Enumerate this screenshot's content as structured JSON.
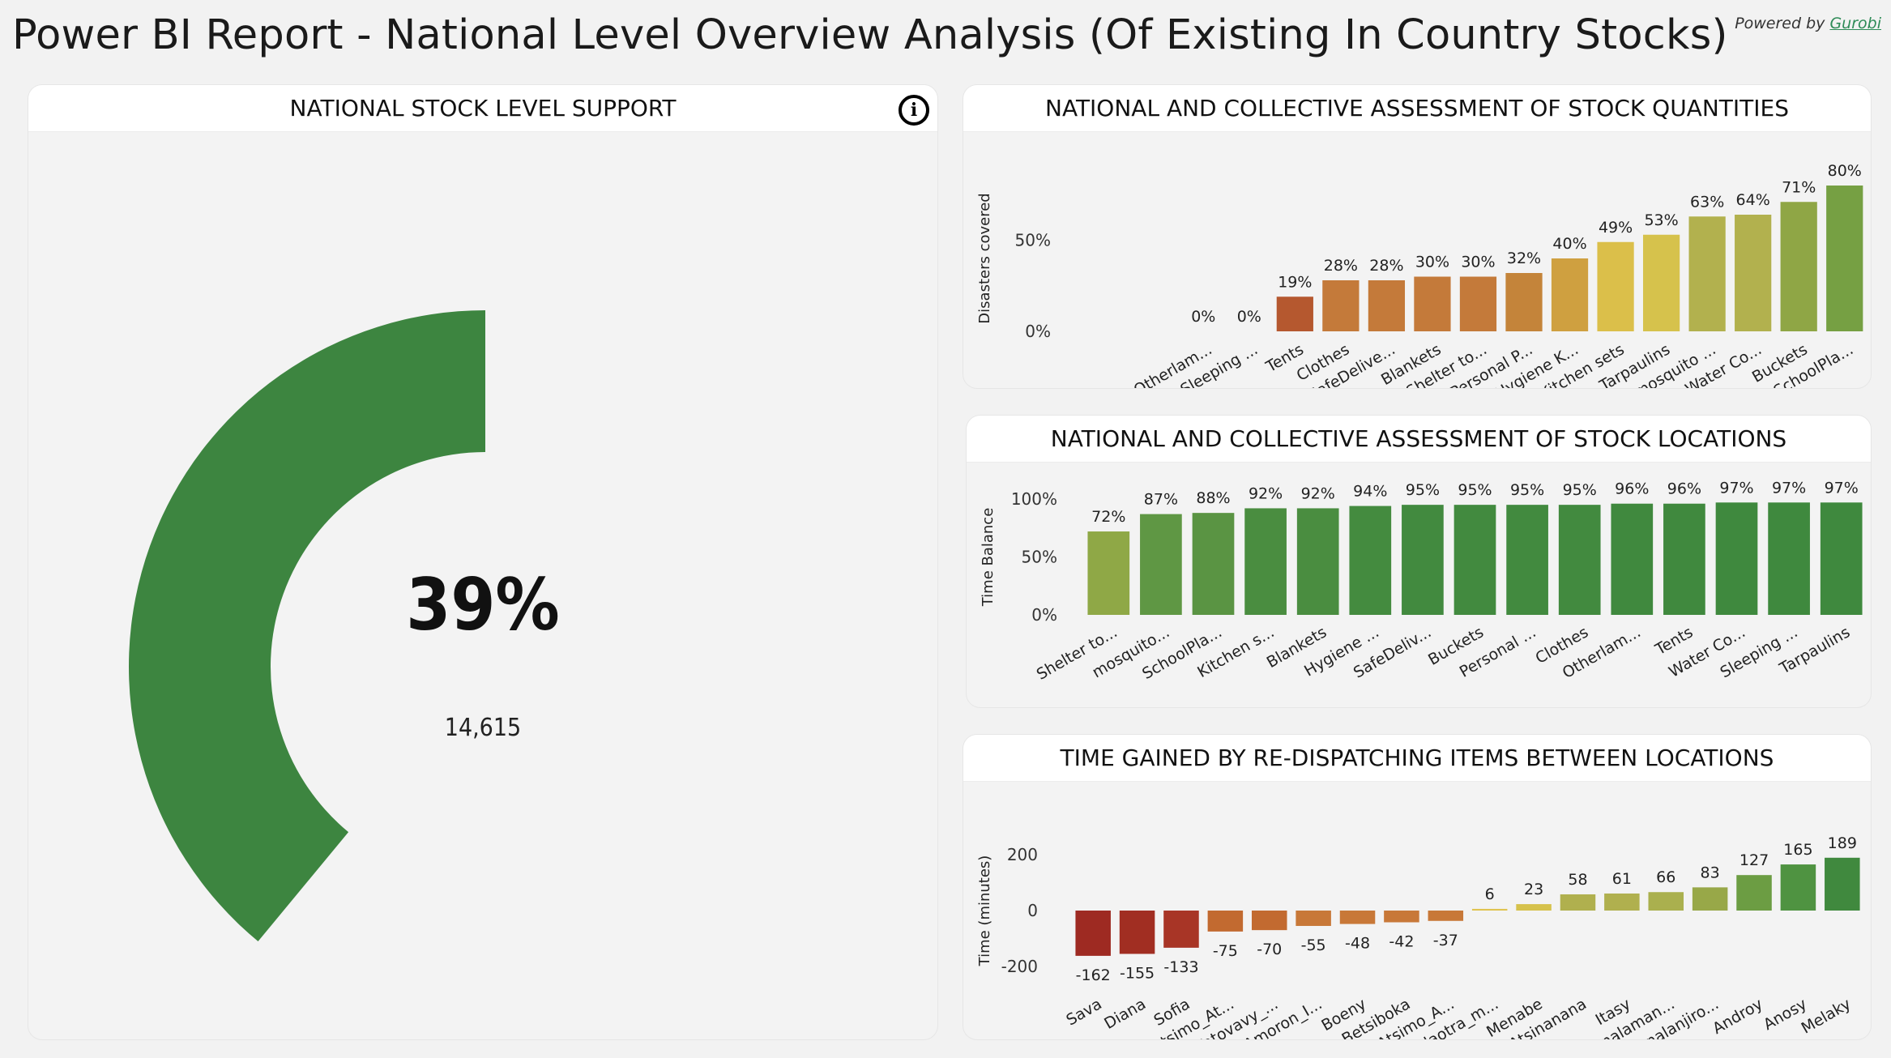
{
  "page": {
    "title": "Power BI Report - National Level Overview Analysis (Of Existing In Country Stocks)",
    "powered_prefix": "Powered by",
    "powered_link": "Gurobi"
  },
  "gauge_card": {
    "title": "NATIONAL STOCK LEVEL SUPPORT",
    "percent_label": "39%",
    "count_label": "14,615",
    "info_icon": "info-icon",
    "color": "#3d8540"
  },
  "chart_data": [
    {
      "type": "bar",
      "title": "NATIONAL AND COLLECTIVE ASSESSMENT OF STOCK QUANTITIES",
      "ylabel": "Disasters covered",
      "xlabel": "",
      "ylim": [
        0,
        0.8
      ],
      "yticks": [
        {
          "value": 0,
          "label": "0%"
        },
        {
          "value": 0.5,
          "label": "50%"
        }
      ],
      "categories": [
        "Otherlam...",
        "Sleeping ...",
        "Tents",
        "Clothes",
        "SafeDelive...",
        "Blankets",
        "Shelter to...",
        "Personal P...",
        "Hygiene K...",
        "Kitchen sets",
        "Tarpaulins",
        "mosquito ...",
        "Water Co...",
        "Buckets",
        "SchoolPla..."
      ],
      "values": [
        0,
        0,
        0.19,
        0.28,
        0.28,
        0.3,
        0.3,
        0.32,
        0.4,
        0.49,
        0.53,
        0.63,
        0.64,
        0.71,
        0.8
      ],
      "data_labels": [
        "0%",
        "0%",
        "19%",
        "28%",
        "28%",
        "30%",
        "30%",
        "32%",
        "40%",
        "49%",
        "53%",
        "63%",
        "64%",
        "71%",
        "80%"
      ],
      "colors": [
        "#b5582f",
        "#b5582f",
        "#b5582f",
        "#c47a3a",
        "#c47a3a",
        "#c47a3a",
        "#c47a3a",
        "#c4843a",
        "#cfa040",
        "#dbbf4a",
        "#d6c24c",
        "#b2b14e",
        "#b2b14e",
        "#8fa645",
        "#76a043"
      ]
    },
    {
      "type": "bar",
      "title": "NATIONAL AND COLLECTIVE ASSESSMENT OF STOCK LOCATIONS",
      "ylabel": "Time Balance",
      "xlabel": "",
      "ylim": [
        0,
        1.0
      ],
      "yticks": [
        {
          "value": 0,
          "label": "0%"
        },
        {
          "value": 0.5,
          "label": "50%"
        },
        {
          "value": 1.0,
          "label": "100%"
        }
      ],
      "categories": [
        "Shelter to...",
        "mosquito...",
        "SchoolPla...",
        "Kitchen s...",
        "Blankets",
        "Hygiene ...",
        "SafeDeliv...",
        "Buckets",
        "Personal ...",
        "Clothes",
        "Otherlam...",
        "Tents",
        "Water Co...",
        "Sleeping ...",
        "Tarpaulins"
      ],
      "values": [
        0.72,
        0.87,
        0.88,
        0.92,
        0.92,
        0.94,
        0.95,
        0.95,
        0.95,
        0.95,
        0.96,
        0.96,
        0.97,
        0.97,
        0.97
      ],
      "data_labels": [
        "72%",
        "87%",
        "88%",
        "92%",
        "92%",
        "94%",
        "95%",
        "95%",
        "95%",
        "95%",
        "96%",
        "96%",
        "97%",
        "97%",
        "97%"
      ],
      "colors": [
        "#8fa846",
        "#5f9744",
        "#5a9443",
        "#4a8d40",
        "#4a8d40",
        "#448b3f",
        "#428a3f",
        "#428a3f",
        "#428a3f",
        "#428a3f",
        "#40893e",
        "#40893e",
        "#3f893e",
        "#3f893e",
        "#3f893e"
      ]
    },
    {
      "type": "bar",
      "title": "TIME GAINED BY RE-DISPATCHING ITEMS BETWEEN LOCATIONS",
      "ylabel": "Time (minutes)",
      "xlabel": "",
      "ylim": [
        -200,
        200
      ],
      "yticks": [
        {
          "value": -200,
          "label": "-200"
        },
        {
          "value": 0,
          "label": "0"
        },
        {
          "value": 200,
          "label": "200"
        }
      ],
      "categories": [
        "Sava",
        "Diana",
        "Sofia",
        "Atsimo_At...",
        "Vatovavy_...",
        "Amoron_I...",
        "Boeny",
        "Betsiboka",
        "Atsimo_A...",
        "Alaotra_m...",
        "Menabe",
        "Atsinanana",
        "Itasy",
        "Analaman...",
        "Analanjiro...",
        "Androy",
        "Anosy",
        "Melaky"
      ],
      "values": [
        -162,
        -155,
        -133,
        -75,
        -70,
        -55,
        -48,
        -42,
        -37,
        6,
        23,
        58,
        61,
        66,
        83,
        127,
        165,
        189
      ],
      "data_labels": [
        "-162",
        "-155",
        "-133",
        "-75",
        "-70",
        "-55",
        "-48",
        "-42",
        "-37",
        "6",
        "23",
        "58",
        "61",
        "66",
        "83",
        "127",
        "165",
        "189"
      ],
      "colors": [
        "#9e2a22",
        "#a12e22",
        "#a83526",
        "#c26a30",
        "#c26a30",
        "#c87838",
        "#c87838",
        "#c87838",
        "#c87838",
        "#e0c450",
        "#d6c24c",
        "#b0b04e",
        "#b0b04e",
        "#aab04e",
        "#98a848",
        "#6c9d43",
        "#4f9341",
        "#40893e"
      ]
    }
  ]
}
